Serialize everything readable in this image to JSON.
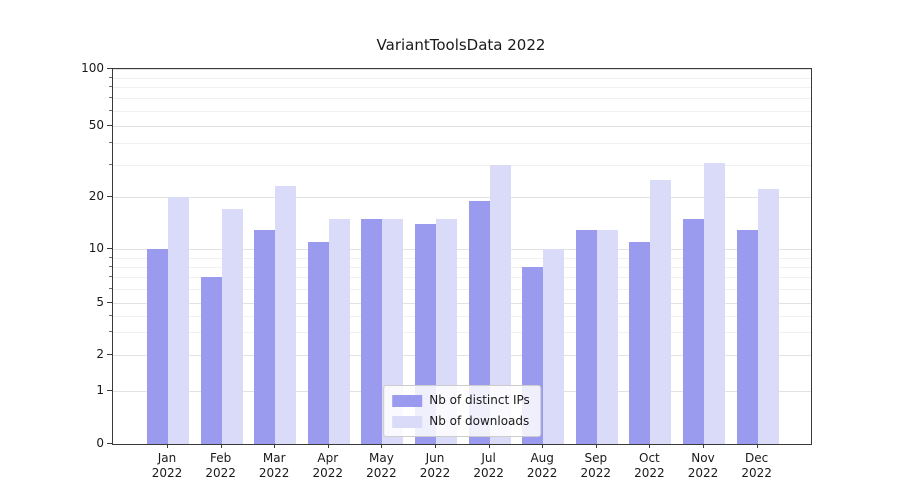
{
  "title": "VariantToolsData 2022",
  "chart_data": {
    "type": "bar",
    "title": "VariantToolsData 2022",
    "xlabel": "",
    "ylabel": "",
    "y_scale": "symlog",
    "ylim": [
      0,
      100
    ],
    "grid": true,
    "legend_position": "lower center",
    "year": "2022",
    "categories": [
      "Jan",
      "Feb",
      "Mar",
      "Apr",
      "May",
      "Jun",
      "Jul",
      "Aug",
      "Sep",
      "Oct",
      "Nov",
      "Dec"
    ],
    "yticks": [
      0,
      1,
      2,
      5,
      10,
      20,
      50,
      100
    ],
    "series": [
      {
        "name": "Nb of distinct IPs",
        "color": "#9a9aef",
        "values": [
          10,
          7,
          13,
          11,
          15,
          14,
          19,
          8,
          13,
          11,
          15,
          13
        ]
      },
      {
        "name": "Nb of downloads",
        "color": "#dadaf9",
        "values": [
          20,
          17,
          23,
          15,
          15,
          15,
          30,
          10,
          13,
          25,
          31,
          22
        ]
      }
    ]
  }
}
